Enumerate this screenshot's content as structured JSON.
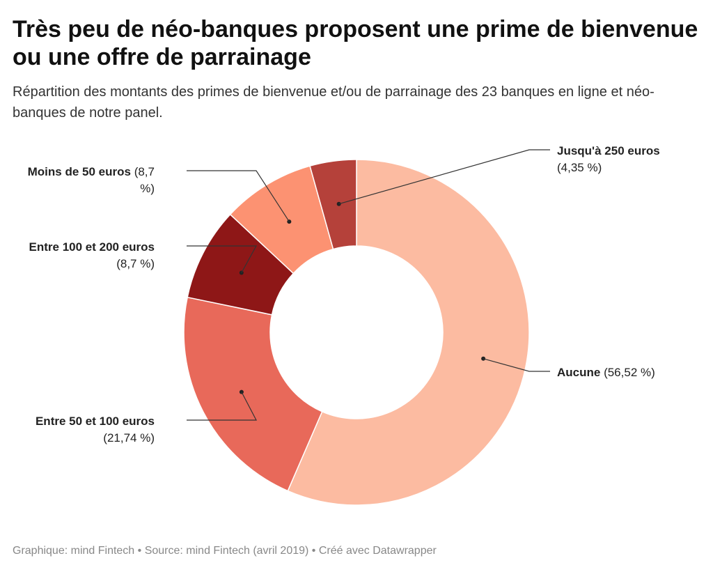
{
  "header": {
    "title": "Très peu de néo-banques proposent une prime de bienvenue ou une offre de parrainage",
    "subtitle": "Répartition des montants des primes de bienvenue et/ou de parrainage des 23 banques en ligne et néo-banques de notre panel."
  },
  "footer": {
    "text": "Graphique: mind Fintech • Source: mind Fintech (avril 2019) • Créé avec Datawrapper"
  },
  "chart_data": {
    "type": "pie",
    "donut": true,
    "unit": "%",
    "slices": [
      {
        "label": "Aucune",
        "value": 56.52,
        "display": "(56,52 %)",
        "color": "#fcbba1"
      },
      {
        "label": "Entre 50 et 100 euros",
        "value": 21.74,
        "display": "(21,74 %)",
        "color": "#e8695a"
      },
      {
        "label": "Entre 100 et 200 euros",
        "value": 8.7,
        "display": "(8,7 %)",
        "color": "#8e1717"
      },
      {
        "label": "Moins de 50 euros",
        "value": 8.7,
        "display": "(8,7 %)",
        "color": "#fc9272"
      },
      {
        "label": "Jusqu'à 250 euros",
        "value": 4.35,
        "display": "(4,35 %)",
        "color": "#b5413a"
      }
    ]
  }
}
